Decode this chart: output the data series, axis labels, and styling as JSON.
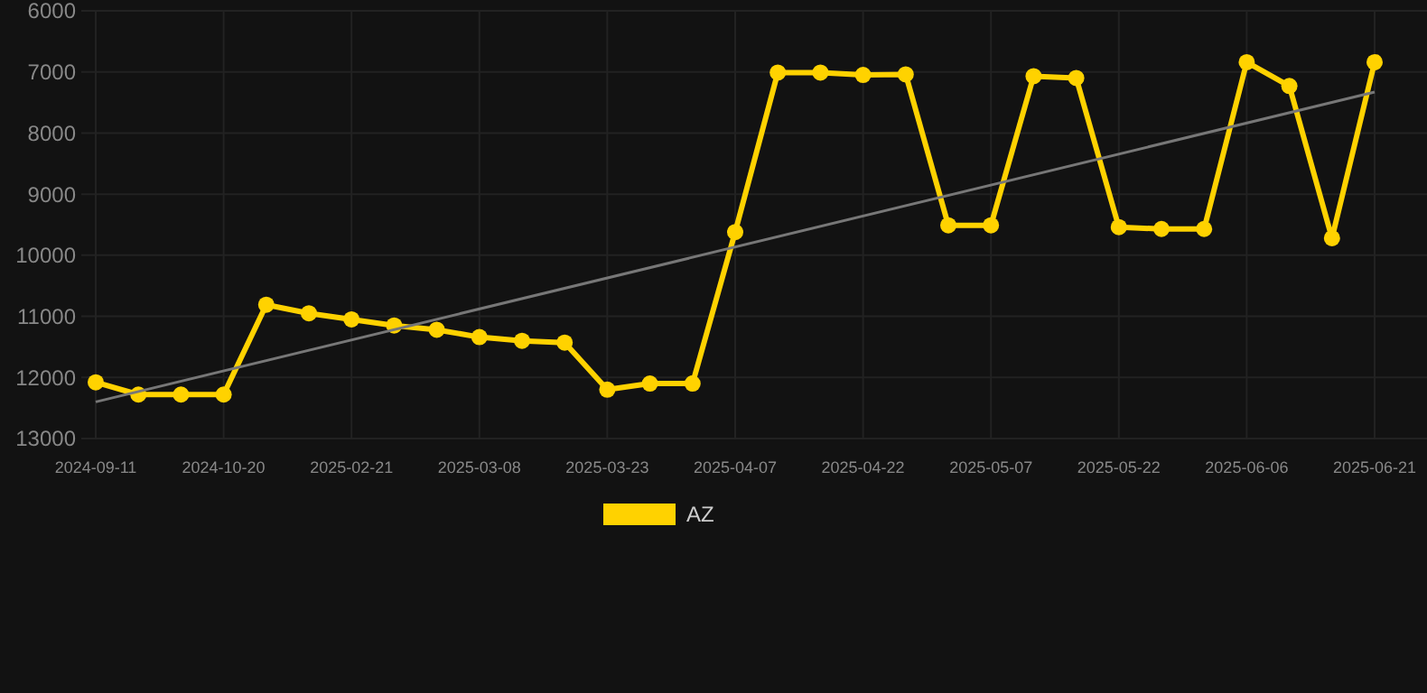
{
  "chart_data": {
    "type": "line",
    "categories": [
      "2024-09-11",
      null,
      null,
      "2024-10-20",
      null,
      null,
      "2025-02-21",
      null,
      null,
      "2025-03-08",
      null,
      null,
      "2025-03-23",
      null,
      null,
      "2025-04-07",
      null,
      null,
      "2025-04-22",
      null,
      null,
      "2025-05-07",
      null,
      null,
      "2025-05-22",
      null,
      null,
      "2025-06-06",
      null,
      null,
      "2025-06-21"
    ],
    "series": [
      {
        "name": "AZ",
        "color": "#ffd200",
        "marker": "circle",
        "values": [
          12080,
          12280,
          12280,
          12280,
          10810,
          10950,
          11050,
          11150,
          11220,
          11340,
          11400,
          11430,
          12200,
          12100,
          12100,
          9620,
          7010,
          7010,
          7050,
          7040,
          9510,
          9510,
          7070,
          7100,
          9540,
          9570,
          9570,
          6840,
          7230,
          9720,
          6840
        ]
      },
      {
        "color": "#777777",
        "marker": "none",
        "values": [
          12400,
          null,
          null,
          null,
          null,
          null,
          null,
          null,
          null,
          null,
          null,
          null,
          null,
          null,
          null,
          null,
          null,
          null,
          null,
          null,
          null,
          null,
          null,
          null,
          null,
          null,
          null,
          null,
          null,
          null,
          7330
        ]
      }
    ],
    "ylim": [
      13000,
      6000
    ],
    "yticks": [
      6000,
      7000,
      8000,
      9000,
      10000,
      11000,
      12000,
      13000
    ],
    "grid": true,
    "legend": "bottom"
  }
}
